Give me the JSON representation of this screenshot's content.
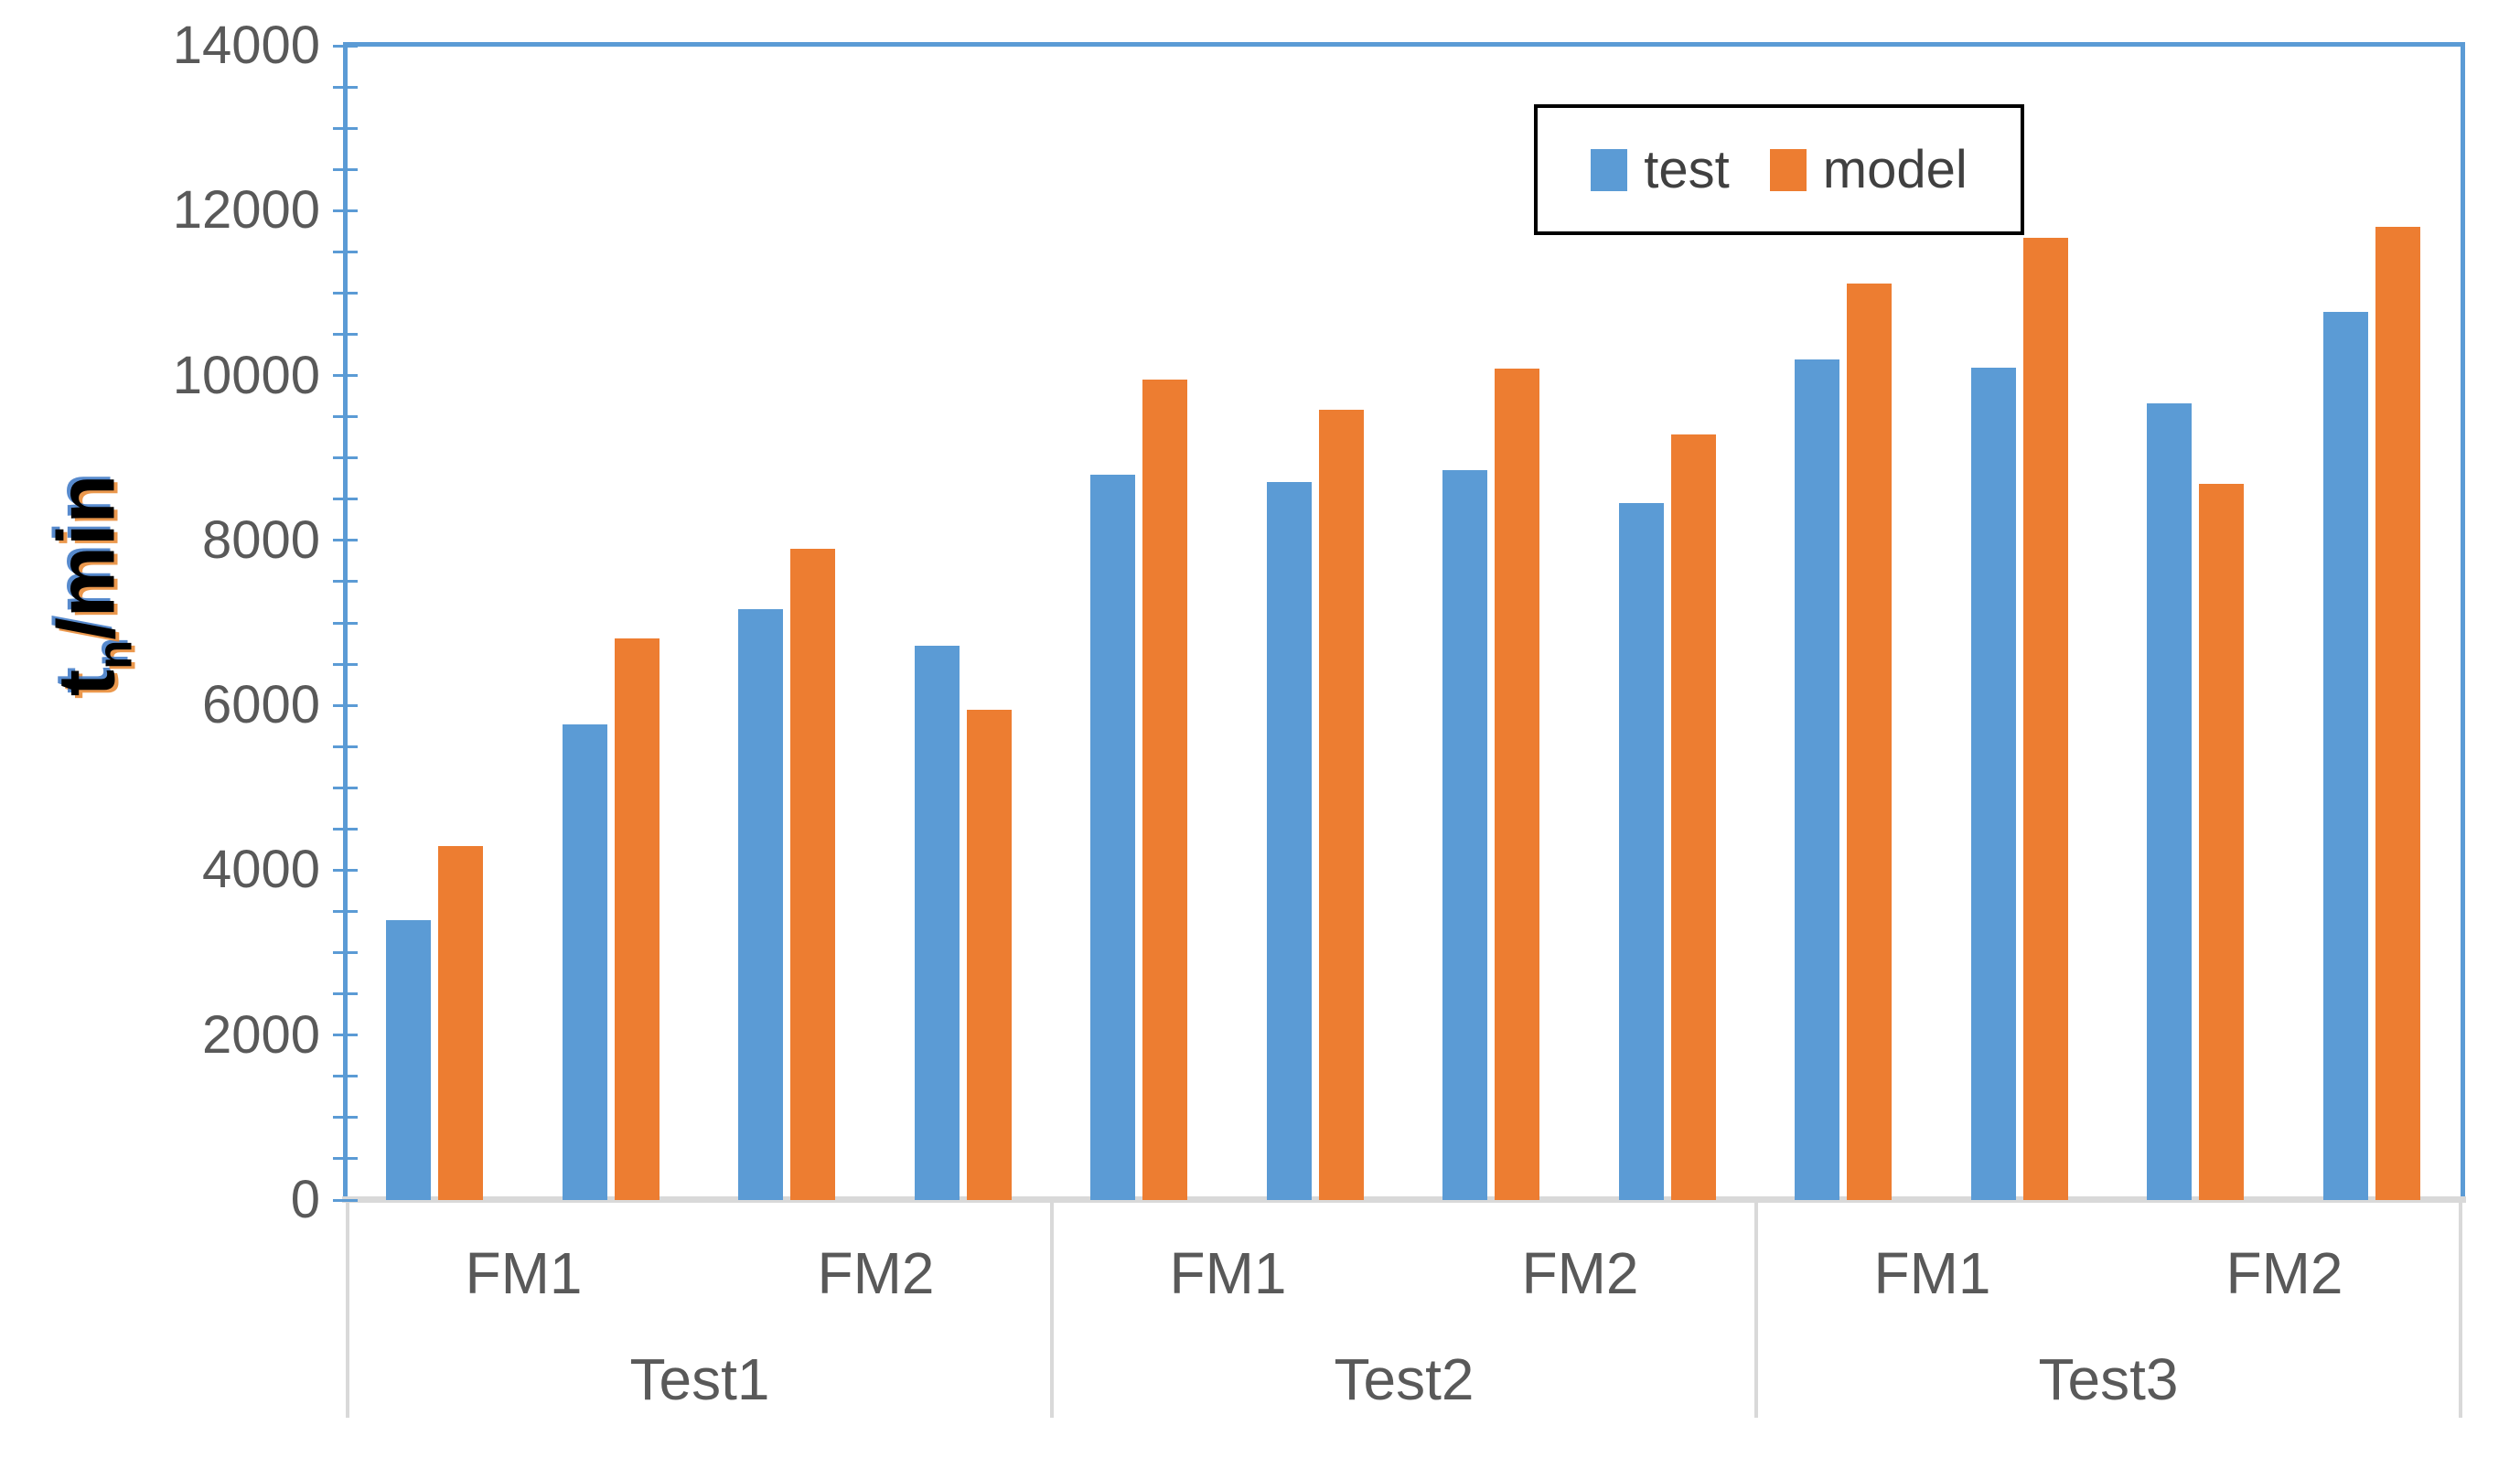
{
  "chart_data": {
    "type": "bar",
    "title": "",
    "ylabel": "tn/min",
    "ylabel_parts": {
      "base": "t",
      "sub": "n",
      "rest": "/min"
    },
    "ylim": [
      0,
      14000
    ],
    "grid": false,
    "legend_position": "top-right",
    "y_axis": {
      "ticks": [
        0,
        2000,
        4000,
        6000,
        8000,
        10000,
        12000,
        14000
      ],
      "minor_tick_step": 500
    },
    "series": [
      {
        "key": "test",
        "name": "test",
        "color": "#5B9BD5"
      },
      {
        "key": "model",
        "name": "model",
        "color": "#ED7D31"
      }
    ],
    "groups": [
      {
        "label": "Test1",
        "fm_labels": [
          "FM1",
          "FM2"
        ],
        "pairs": [
          {
            "fm": "FM1",
            "test": 3400,
            "model": 4290
          },
          {
            "fm": "FM1",
            "test": 5770,
            "model": 6810
          },
          {
            "fm": "FM2",
            "test": 7170,
            "model": 7900
          },
          {
            "fm": "FM2",
            "test": 6720,
            "model": 5950
          }
        ]
      },
      {
        "label": "Test2",
        "fm_labels": [
          "FM1",
          "FM2"
        ],
        "pairs": [
          {
            "fm": "FM1",
            "test": 8800,
            "model": 9950
          },
          {
            "fm": "FM1",
            "test": 8710,
            "model": 9590
          },
          {
            "fm": "FM2",
            "test": 8850,
            "model": 10080
          },
          {
            "fm": "FM2",
            "test": 8450,
            "model": 9280
          }
        ]
      },
      {
        "label": "Test3",
        "fm_labels": [
          "FM1",
          "FM2"
        ],
        "pairs": [
          {
            "fm": "FM1",
            "test": 10190,
            "model": 11120
          },
          {
            "fm": "FM1",
            "test": 10100,
            "model": 11670
          },
          {
            "fm": "FM2",
            "test": 9660,
            "model": 8690
          },
          {
            "fm": "FM2",
            "test": 10770,
            "model": 11800
          }
        ]
      }
    ],
    "colors": {
      "axis_line": "#5B9BD5",
      "baseline": "#D9D9D9",
      "tick_label": "#595959",
      "legend_border": "#000000"
    }
  }
}
